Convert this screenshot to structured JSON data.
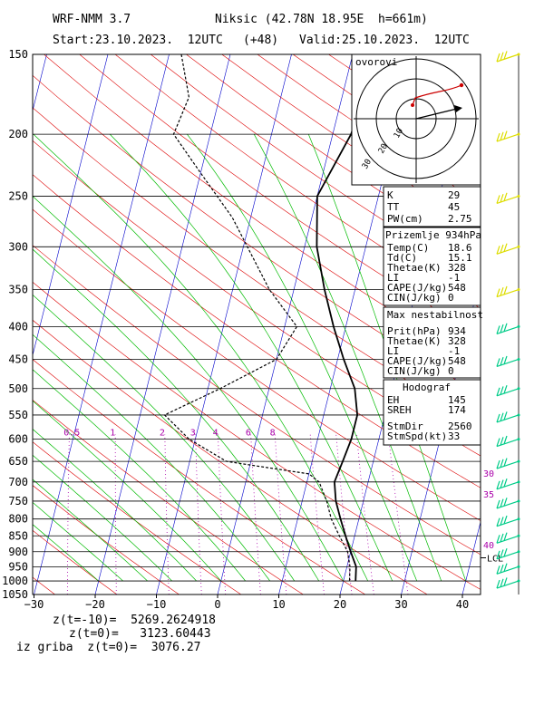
{
  "header": {
    "model": "WRF-NMM 3.7",
    "station": "Niksic (42.78N 18.95E  h=661m)",
    "start": "Start:23.10.2023.  12UTC",
    "lead": "(+48)",
    "valid": "Valid:25.10.2023.  12UTC"
  },
  "footer": {
    "line1": "z(t=-10)=  5269.2624918",
    "line2": "z(t=0)=   3123.60443",
    "line3": "iz griba  z(t=0)=  3076.27"
  },
  "hodograph": {
    "label": "ovorovi"
  },
  "indices_box": {
    "rows": [
      {
        "k": "K",
        "v": "29"
      },
      {
        "k": "TT",
        "v": "45"
      },
      {
        "k": "PW(cm)",
        "v": "2.75"
      }
    ]
  },
  "surface_box": {
    "title": "Prizemlje 934hPa",
    "rows": [
      {
        "k": "Temp(C)",
        "v": "18.6"
      },
      {
        "k": "Td(C)",
        "v": "15.1"
      },
      {
        "k": "Thetae(K)",
        "v": "328"
      },
      {
        "k": "LI",
        "v": "-1"
      },
      {
        "k": "CAPE(J/kg)",
        "v": "548"
      },
      {
        "k": "CIN(J/kg)",
        "v": "0"
      }
    ]
  },
  "instability_box": {
    "title": "Max nestabilnost",
    "rows": [
      {
        "k": "Prit(hPa)",
        "v": "934"
      },
      {
        "k": "Thetae(K)",
        "v": "328"
      },
      {
        "k": "LI",
        "v": "-1"
      },
      {
        "k": "CAPE(J/kg)",
        "v": "548"
      },
      {
        "k": "CIN(J/kg)",
        "v": "0"
      }
    ]
  },
  "hodograf_box": {
    "title": "Hodograf",
    "rows": [
      {
        "k": "EH",
        "v": "145"
      },
      {
        "k": "SREH",
        "v": "174"
      },
      {
        "k": "StmDir",
        "v": "2560"
      },
      {
        "k": "StmSpd(kt)",
        "v": "33"
      }
    ]
  },
  "chart_data": {
    "type": "line",
    "x_ticks": [
      -30,
      -20,
      -10,
      0,
      10,
      20,
      30,
      40
    ],
    "y_ticks": [
      150,
      200,
      250,
      300,
      350,
      400,
      450,
      500,
      550,
      600,
      650,
      700,
      750,
      800,
      850,
      900,
      950,
      1000,
      1050
    ],
    "xlim": [
      -30,
      42
    ],
    "ylim": [
      150,
      1050
    ],
    "y_scale": "log",
    "mixing_ratio_labels": [
      "0.5",
      "1",
      "2",
      "3",
      "4",
      "6",
      "8"
    ],
    "theta_e_labels": [
      "30",
      "35",
      "40"
    ],
    "lcl_label": "LCL",
    "series": [
      {
        "points": [
          [
            -28,
            150
          ],
          [
            -25,
            175
          ],
          [
            -26,
            200
          ],
          [
            -20,
            230
          ],
          [
            -13,
            270
          ],
          [
            -4,
            350
          ],
          [
            2,
            400
          ],
          [
            0,
            450
          ],
          [
            -8,
            500
          ],
          [
            -16,
            550
          ],
          [
            -11,
            600
          ],
          [
            -4,
            650
          ],
          [
            10,
            680
          ],
          [
            12,
            700
          ],
          [
            14,
            750
          ],
          [
            15.5,
            800
          ],
          [
            17.5,
            850
          ],
          [
            19.5,
            900
          ],
          [
            20.5,
            950
          ],
          [
            21,
            1000
          ]
        ]
      },
      {
        "points": [
          [
            4,
            150
          ],
          [
            3,
            200
          ],
          [
            0,
            250
          ],
          [
            2,
            300
          ],
          [
            5,
            350
          ],
          [
            8,
            400
          ],
          [
            11,
            450
          ],
          [
            14,
            500
          ],
          [
            15.5,
            550
          ],
          [
            15.5,
            600
          ],
          [
            15,
            650
          ],
          [
            14.5,
            700
          ],
          [
            15.5,
            750
          ],
          [
            17,
            800
          ],
          [
            18.5,
            850
          ],
          [
            20,
            900
          ],
          [
            21.5,
            950
          ],
          [
            22,
            1000
          ]
        ]
      }
    ],
    "wind_barbs_px": [
      150,
      200,
      250,
      300,
      350,
      400,
      450,
      500,
      550,
      600,
      650,
      700,
      750,
      800,
      850,
      900,
      950,
      1000
    ],
    "grid": true
  },
  "colors": {
    "isotherm": "#0000cc",
    "dry_adiabat": "#dd0000",
    "moist_adiabat": "#00bb00",
    "mixing_ratio": "#aa00aa",
    "temp_profile": "#000000",
    "barb_low": "#00cc88",
    "barb_high": "#dddd00"
  }
}
